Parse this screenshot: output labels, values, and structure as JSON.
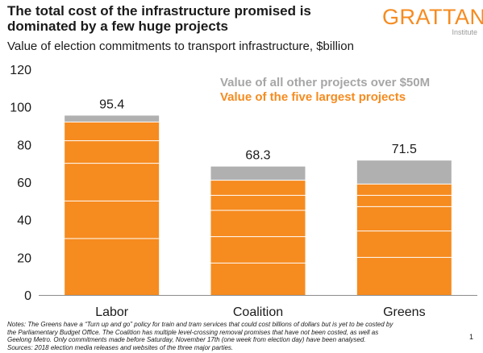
{
  "header": {
    "title": "The total cost of the infrastructure promised is dominated by a few huge projects",
    "subtitle": "Value of election commitments to transport infrastructure, $billion"
  },
  "logo": {
    "main": "GRATTAN",
    "sub": "Institute"
  },
  "colors": {
    "orange": "#f68b1f",
    "grey": "#b0b0b0",
    "grey_label": "#a6a6a6"
  },
  "chart_data": {
    "type": "bar",
    "stacked": true,
    "categories": [
      "Labor",
      "Coalition",
      "Greens"
    ],
    "series": [
      {
        "name": "Value of the five largest projects",
        "color": "#f68b1f",
        "values": [
          92,
          61,
          59
        ],
        "segments": [
          [
            30,
            20,
            20,
            12,
            10
          ],
          [
            17,
            14,
            14,
            8,
            8
          ],
          [
            20,
            14,
            13,
            6,
            6
          ]
        ]
      },
      {
        "name": "Value of all other projects over $50M",
        "color": "#b0b0b0",
        "values": [
          3.4,
          7.3,
          12.5
        ]
      }
    ],
    "totals": [
      "95.4",
      "68.3",
      "71.5"
    ],
    "yticks": [
      "0",
      "20",
      "40",
      "60",
      "80",
      "100",
      "120"
    ],
    "ylim": [
      0,
      120
    ],
    "grid": false,
    "legend": "top-right"
  },
  "notes": {
    "line1": "Notes: The Greens have a “Turn up and go” policy for train and tram services that could cost billions of dollars but is yet to be costed by",
    "line2": "the Parliamentary Budget Office. The Coalition has multiple level-crossing removal promises that have not been costed, as well as",
    "line3": "Geelong Metro. Only commitments made before Saturday, November 17th (one week from election day) have been analysed.",
    "line4": "Sources: 2018 election media releases and websites of the three major parties."
  },
  "page_number": "1"
}
